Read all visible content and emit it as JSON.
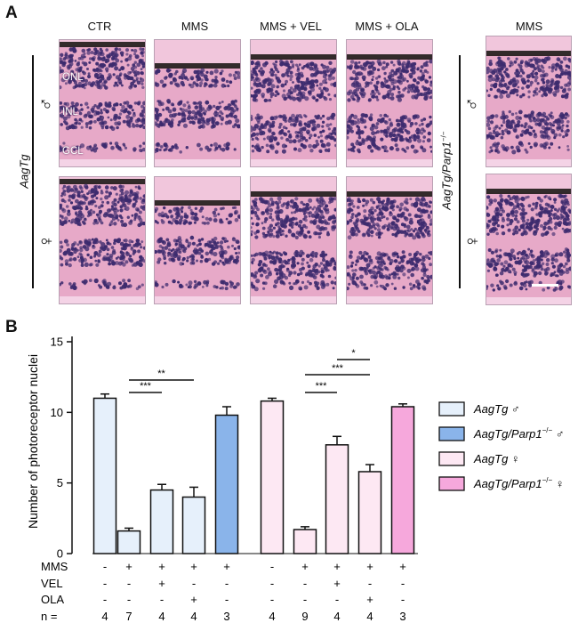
{
  "panel_a": {
    "letter": "A",
    "columns": [
      "CTR",
      "MMS",
      "MMS + VEL",
      "MMS + OLA",
      "MMS"
    ],
    "row_group_left": "AagTg",
    "row_group_right": "AagTg/Parp1",
    "row_group_right_sup": "−/−",
    "sex_male": "♂",
    "sex_female": "♀",
    "layers": [
      "ONL",
      "INL",
      "GCL"
    ],
    "colors": {
      "tissue_pink": "#e7a9c8",
      "nuclei": "#3d2b6e",
      "pigment": "#1e1a17"
    }
  },
  "panel_b": {
    "letter": "B",
    "row_labels": [
      "MMS",
      "VEL",
      "OLA",
      "n ="
    ],
    "legend": [
      {
        "label": "AagTg ♂",
        "italic_part": "AagTg",
        "suffix": " ♂",
        "sup": "",
        "color": "#e6f0fb"
      },
      {
        "label": "AagTg/Parp1−/− ♂",
        "italic_part": "AagTg/Parp1",
        "suffix": " ♂",
        "sup": "−/−",
        "color": "#8ab4ea"
      },
      {
        "label": "AagTg ♀",
        "italic_part": "AagTg",
        "suffix": " ♀",
        "sup": "",
        "color": "#fde8f3"
      },
      {
        "label": "AagTg/Parp1−/− ♀",
        "italic_part": "AagTg/Parp1",
        "suffix": " ♀",
        "sup": "−/−",
        "color": "#f6a8dc"
      }
    ],
    "significance": [
      {
        "from": 1,
        "to": 2,
        "label": "***"
      },
      {
        "from": 1,
        "to": 3,
        "label": "**"
      },
      {
        "from": 6,
        "to": 7,
        "label": "***"
      },
      {
        "from": 6,
        "to": 8,
        "label": "***"
      },
      {
        "from": 7,
        "to": 8,
        "label": "*"
      }
    ]
  },
  "chart_data": {
    "type": "bar",
    "ylabel": "Number of photoreceptor nuclei",
    "ylim": [
      0,
      15
    ],
    "yticks": [
      0,
      5,
      10,
      15
    ],
    "bars": [
      {
        "value": 11.0,
        "error": 0.3,
        "group": 0,
        "mms": "-",
        "vel": "-",
        "ola": "-",
        "n": "4"
      },
      {
        "value": 1.6,
        "error": 0.2,
        "group": 0,
        "mms": "+",
        "vel": "-",
        "ola": "-",
        "n": "7"
      },
      {
        "value": 4.5,
        "error": 0.4,
        "group": 0,
        "mms": "+",
        "vel": "+",
        "ola": "-",
        "n": "4"
      },
      {
        "value": 4.0,
        "error": 0.7,
        "group": 0,
        "mms": "+",
        "vel": "-",
        "ola": "+",
        "n": "4"
      },
      {
        "value": 9.8,
        "error": 0.6,
        "group": 1,
        "mms": "+",
        "vel": "-",
        "ola": "-",
        "n": "3"
      },
      {
        "value": 10.8,
        "error": 0.2,
        "group": 2,
        "mms": "-",
        "vel": "-",
        "ola": "-",
        "n": "4"
      },
      {
        "value": 1.7,
        "error": 0.2,
        "group": 2,
        "mms": "+",
        "vel": "-",
        "ola": "-",
        "n": "9"
      },
      {
        "value": 7.7,
        "error": 0.6,
        "group": 2,
        "mms": "+",
        "vel": "+",
        "ola": "-",
        "n": "4"
      },
      {
        "value": 5.8,
        "error": 0.5,
        "group": 2,
        "mms": "+",
        "vel": "-",
        "ola": "+",
        "n": "4"
      },
      {
        "value": 10.4,
        "error": 0.2,
        "group": 3,
        "mms": "+",
        "vel": "-",
        "ola": "-",
        "n": "3"
      }
    ]
  }
}
